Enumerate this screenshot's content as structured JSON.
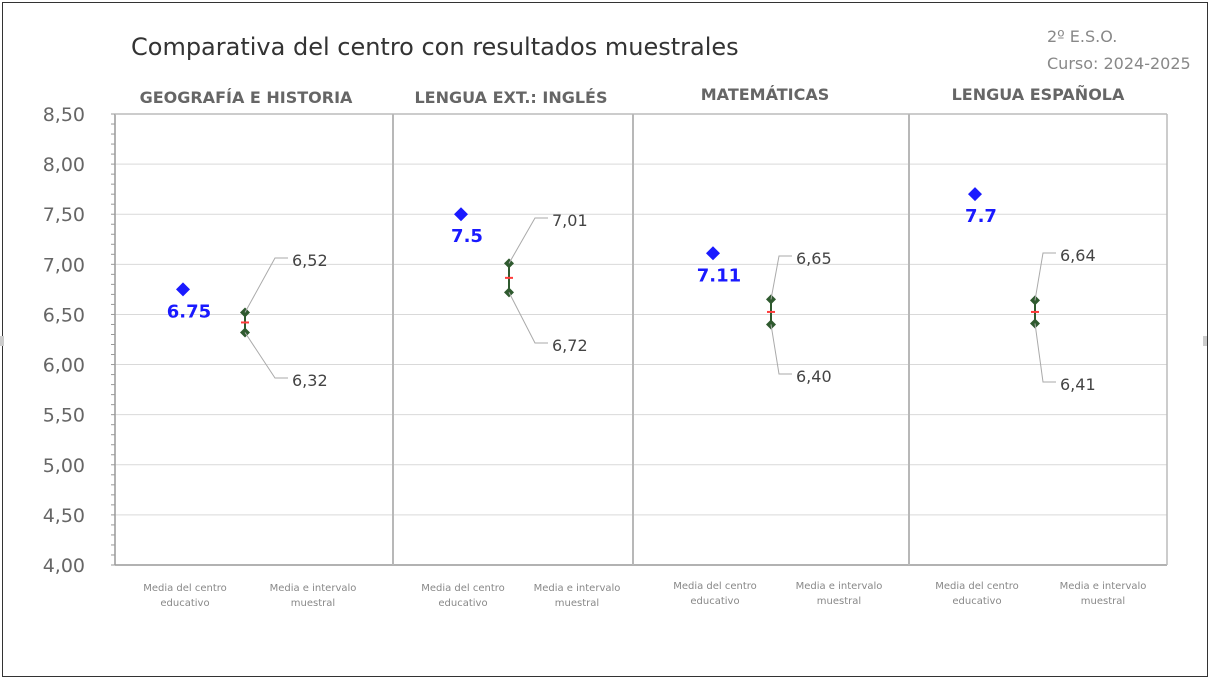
{
  "header": {
    "title": "Comparativa del centro con resultados muestrales",
    "level": "2º E.S.O.",
    "course": "Curso: 2024-2025"
  },
  "chart_data": {
    "type": "scatter",
    "title": "Comparativa del centro con resultados muestrales",
    "ylim": [
      4.0,
      8.5
    ],
    "y_ticks": [
      "4,00",
      "4,50",
      "5,00",
      "5,50",
      "6,00",
      "6,50",
      "7,00",
      "7,50",
      "8,00",
      "8,50"
    ],
    "grid": true,
    "x_categories": [
      "Media del centro educativo",
      "Media e intervalo muestral"
    ],
    "panels": [
      {
        "name": "GEOGRAFÍA E HISTORIA",
        "centro": 6.75,
        "centro_label": "6.75",
        "upper": 6.52,
        "lower": 6.32,
        "upper_label": "6,52",
        "lower_label": "6,32"
      },
      {
        "name": "LENGUA EXT.: INGLÉS",
        "centro": 7.5,
        "centro_label": "7.5",
        "upper": 7.01,
        "lower": 6.72,
        "upper_label": "7,01",
        "lower_label": "6,72"
      },
      {
        "name": "MATEMÁTICAS",
        "centro": 7.11,
        "centro_label": "7.11",
        "upper": 6.65,
        "lower": 6.4,
        "upper_label": "6,65",
        "lower_label": "6,40"
      },
      {
        "name": "LENGUA ESPAÑOLA",
        "centro": 7.7,
        "centro_label": "7.7",
        "upper": 6.64,
        "lower": 6.41,
        "upper_label": "6,64",
        "lower_label": "6,41"
      }
    ],
    "colors": {
      "centro": "#1a1aff",
      "interval": "#2f5a2f",
      "mean": "#ff3b3b",
      "grid": "#d9d9d9",
      "axis": "#999999",
      "text": "#666666"
    }
  }
}
